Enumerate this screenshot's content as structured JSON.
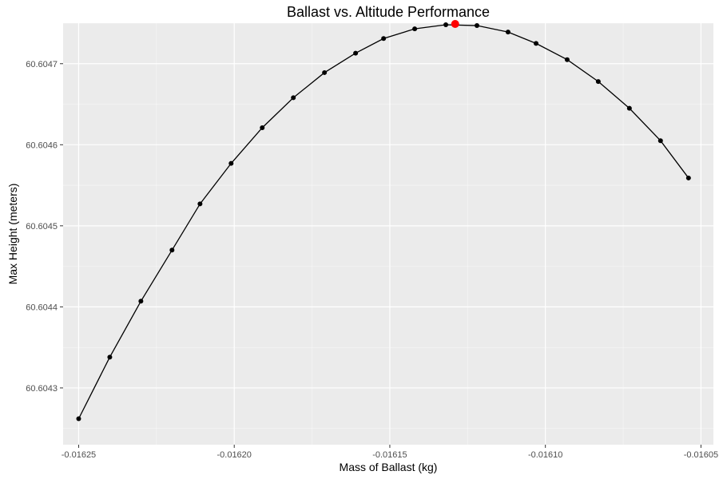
{
  "chart_data": {
    "type": "line",
    "title": "Ballast vs. Altitude Performance",
    "xlabel": "Mass of Ballast (kg)",
    "ylabel": "Max Height (meters)",
    "xlim": [
      -0.016255,
      -0.016046
    ],
    "ylim": [
      60.60423,
      60.60475
    ],
    "x_ticks": [
      -0.01625,
      -0.0162,
      -0.01615,
      -0.0161,
      -0.01605
    ],
    "x_tick_labels": [
      "-0.01625",
      "-0.01620",
      "-0.01615",
      "-0.01610",
      "-0.01605"
    ],
    "y_ticks": [
      60.6043,
      60.6044,
      60.6045,
      60.6046,
      60.6047
    ],
    "y_tick_labels": [
      "60.6043",
      "60.6044",
      "60.6045",
      "60.6046",
      "60.6047"
    ],
    "grid": true,
    "colors": {
      "panel_background": "#ebebeb",
      "grid_major": "#ffffff",
      "line": "#000000",
      "point": "#000000",
      "highlight": "#ff0000"
    },
    "series": [
      {
        "x": [
          -0.01625,
          -0.01624,
          -0.01623,
          -0.01622,
          -0.016211,
          -0.016201,
          -0.016191,
          -0.016181,
          -0.016171,
          -0.016161,
          -0.016152,
          -0.016142,
          -0.016132,
          -0.016122,
          -0.016112,
          -0.016103,
          -0.016093,
          -0.016083,
          -0.016073,
          -0.016063,
          -0.016054
        ],
        "y": [
          60.604262,
          60.604338,
          60.604407,
          60.60447,
          60.604527,
          60.604577,
          60.604621,
          60.604658,
          60.604689,
          60.604713,
          60.604731,
          60.604743,
          60.604748,
          60.604747,
          60.604739,
          60.604725,
          60.604705,
          60.604678,
          60.604645,
          60.604605,
          60.604559
        ]
      }
    ],
    "highlight_point": {
      "x": -0.016129,
      "y": 60.604749
    }
  }
}
